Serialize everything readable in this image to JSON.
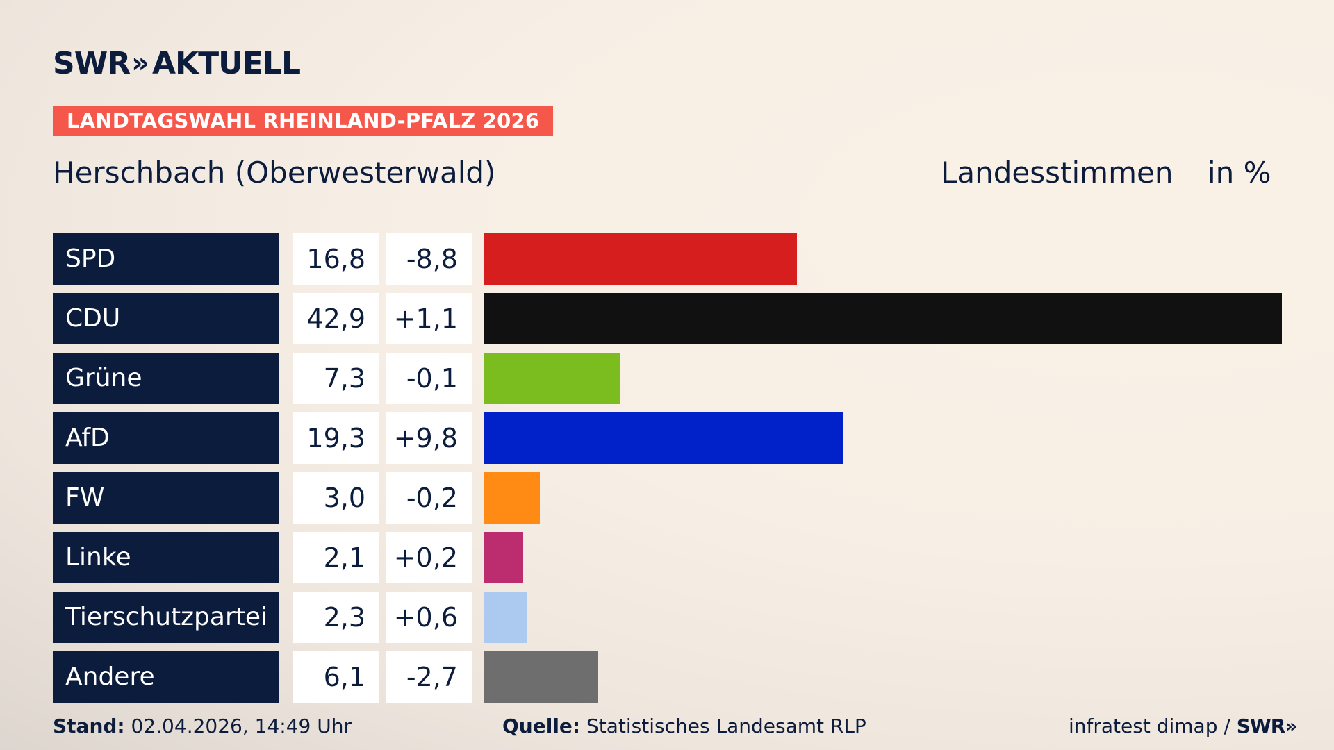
{
  "header": {
    "logo_text": "SWR",
    "logo_chevrons": "»",
    "logo_word": "AKTUELL",
    "tag": "LANDTAGSWAHL RHEINLAND-PFALZ 2026",
    "region": "Herschbach (Oberwesterwald)",
    "vote_type": "Landesstimmen",
    "unit": "in %"
  },
  "chart_data": {
    "type": "bar",
    "orientation": "horizontal",
    "title": "Herschbach (Oberwesterwald)",
    "categories": [
      "SPD",
      "CDU",
      "Grüne",
      "AfD",
      "FW",
      "Linke",
      "Tierschutzpartei",
      "Andere"
    ],
    "values_label": [
      "16,8",
      "42,9",
      "7,3",
      "19,3",
      "3,0",
      "2,1",
      "2,3",
      "6,1"
    ],
    "changes_label": [
      "-8,8",
      "+1,1",
      "-0,1",
      "+9,8",
      "-0,2",
      "+0,2",
      "+0,6",
      "-2,7"
    ],
    "values": [
      16.8,
      42.9,
      7.3,
      19.3,
      3.0,
      2.1,
      2.3,
      6.1
    ],
    "changes": [
      -8.8,
      1.1,
      -0.1,
      9.8,
      -0.2,
      0.2,
      0.6,
      -2.7
    ],
    "colors": [
      "#d61e1e",
      "#111111",
      "#7bbd1e",
      "#0022c8",
      "#ff8a14",
      "#bb2d6f",
      "#accaf0",
      "#6e6e6e"
    ],
    "xlim": [
      0,
      42.9
    ],
    "grid": false,
    "legend": "none"
  },
  "footer": {
    "stand_label": "Stand:",
    "stand_value": "02.04.2026, 14:49 Uhr",
    "source_label": "Quelle:",
    "source_value": "Statistisches Landesamt RLP",
    "credit": "infratest dimap /",
    "credit_logo": "SWR",
    "credit_chevrons": "»"
  }
}
